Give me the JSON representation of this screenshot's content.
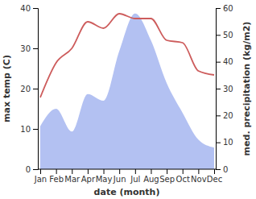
{
  "chart_data": {
    "type": "line",
    "x_label": "date (month)",
    "y_label": "max temp (C)",
    "y2_label": "med. precipitation (kg/m2)",
    "categories": [
      "Jan",
      "Feb",
      "Mar",
      "Apr",
      "May",
      "Jun",
      "Jul",
      "Aug",
      "Sep",
      "Oct",
      "Nov",
      "Dec"
    ],
    "series": [
      {
        "type": "area",
        "axis": "y2",
        "color": "#b3c1f2",
        "values": [
          16,
          22.5,
          14,
          28,
          25.5,
          44,
          58,
          48,
          32,
          21,
          11,
          8
        ]
      },
      {
        "type": "line",
        "color": "#cd5c5c",
        "values": [
          17.8,
          26.4,
          30,
          36.6,
          35,
          38.6,
          37.4,
          37.4,
          32,
          31.4,
          24.4,
          23.4
        ]
      }
    ],
    "ylim": [
      0,
      40
    ],
    "yticks": [
      0,
      10,
      20,
      30,
      40
    ],
    "y2lim": [
      0,
      60
    ],
    "y2ticks": [
      0,
      10,
      20,
      30,
      40,
      50,
      60
    ],
    "grid": false
  }
}
